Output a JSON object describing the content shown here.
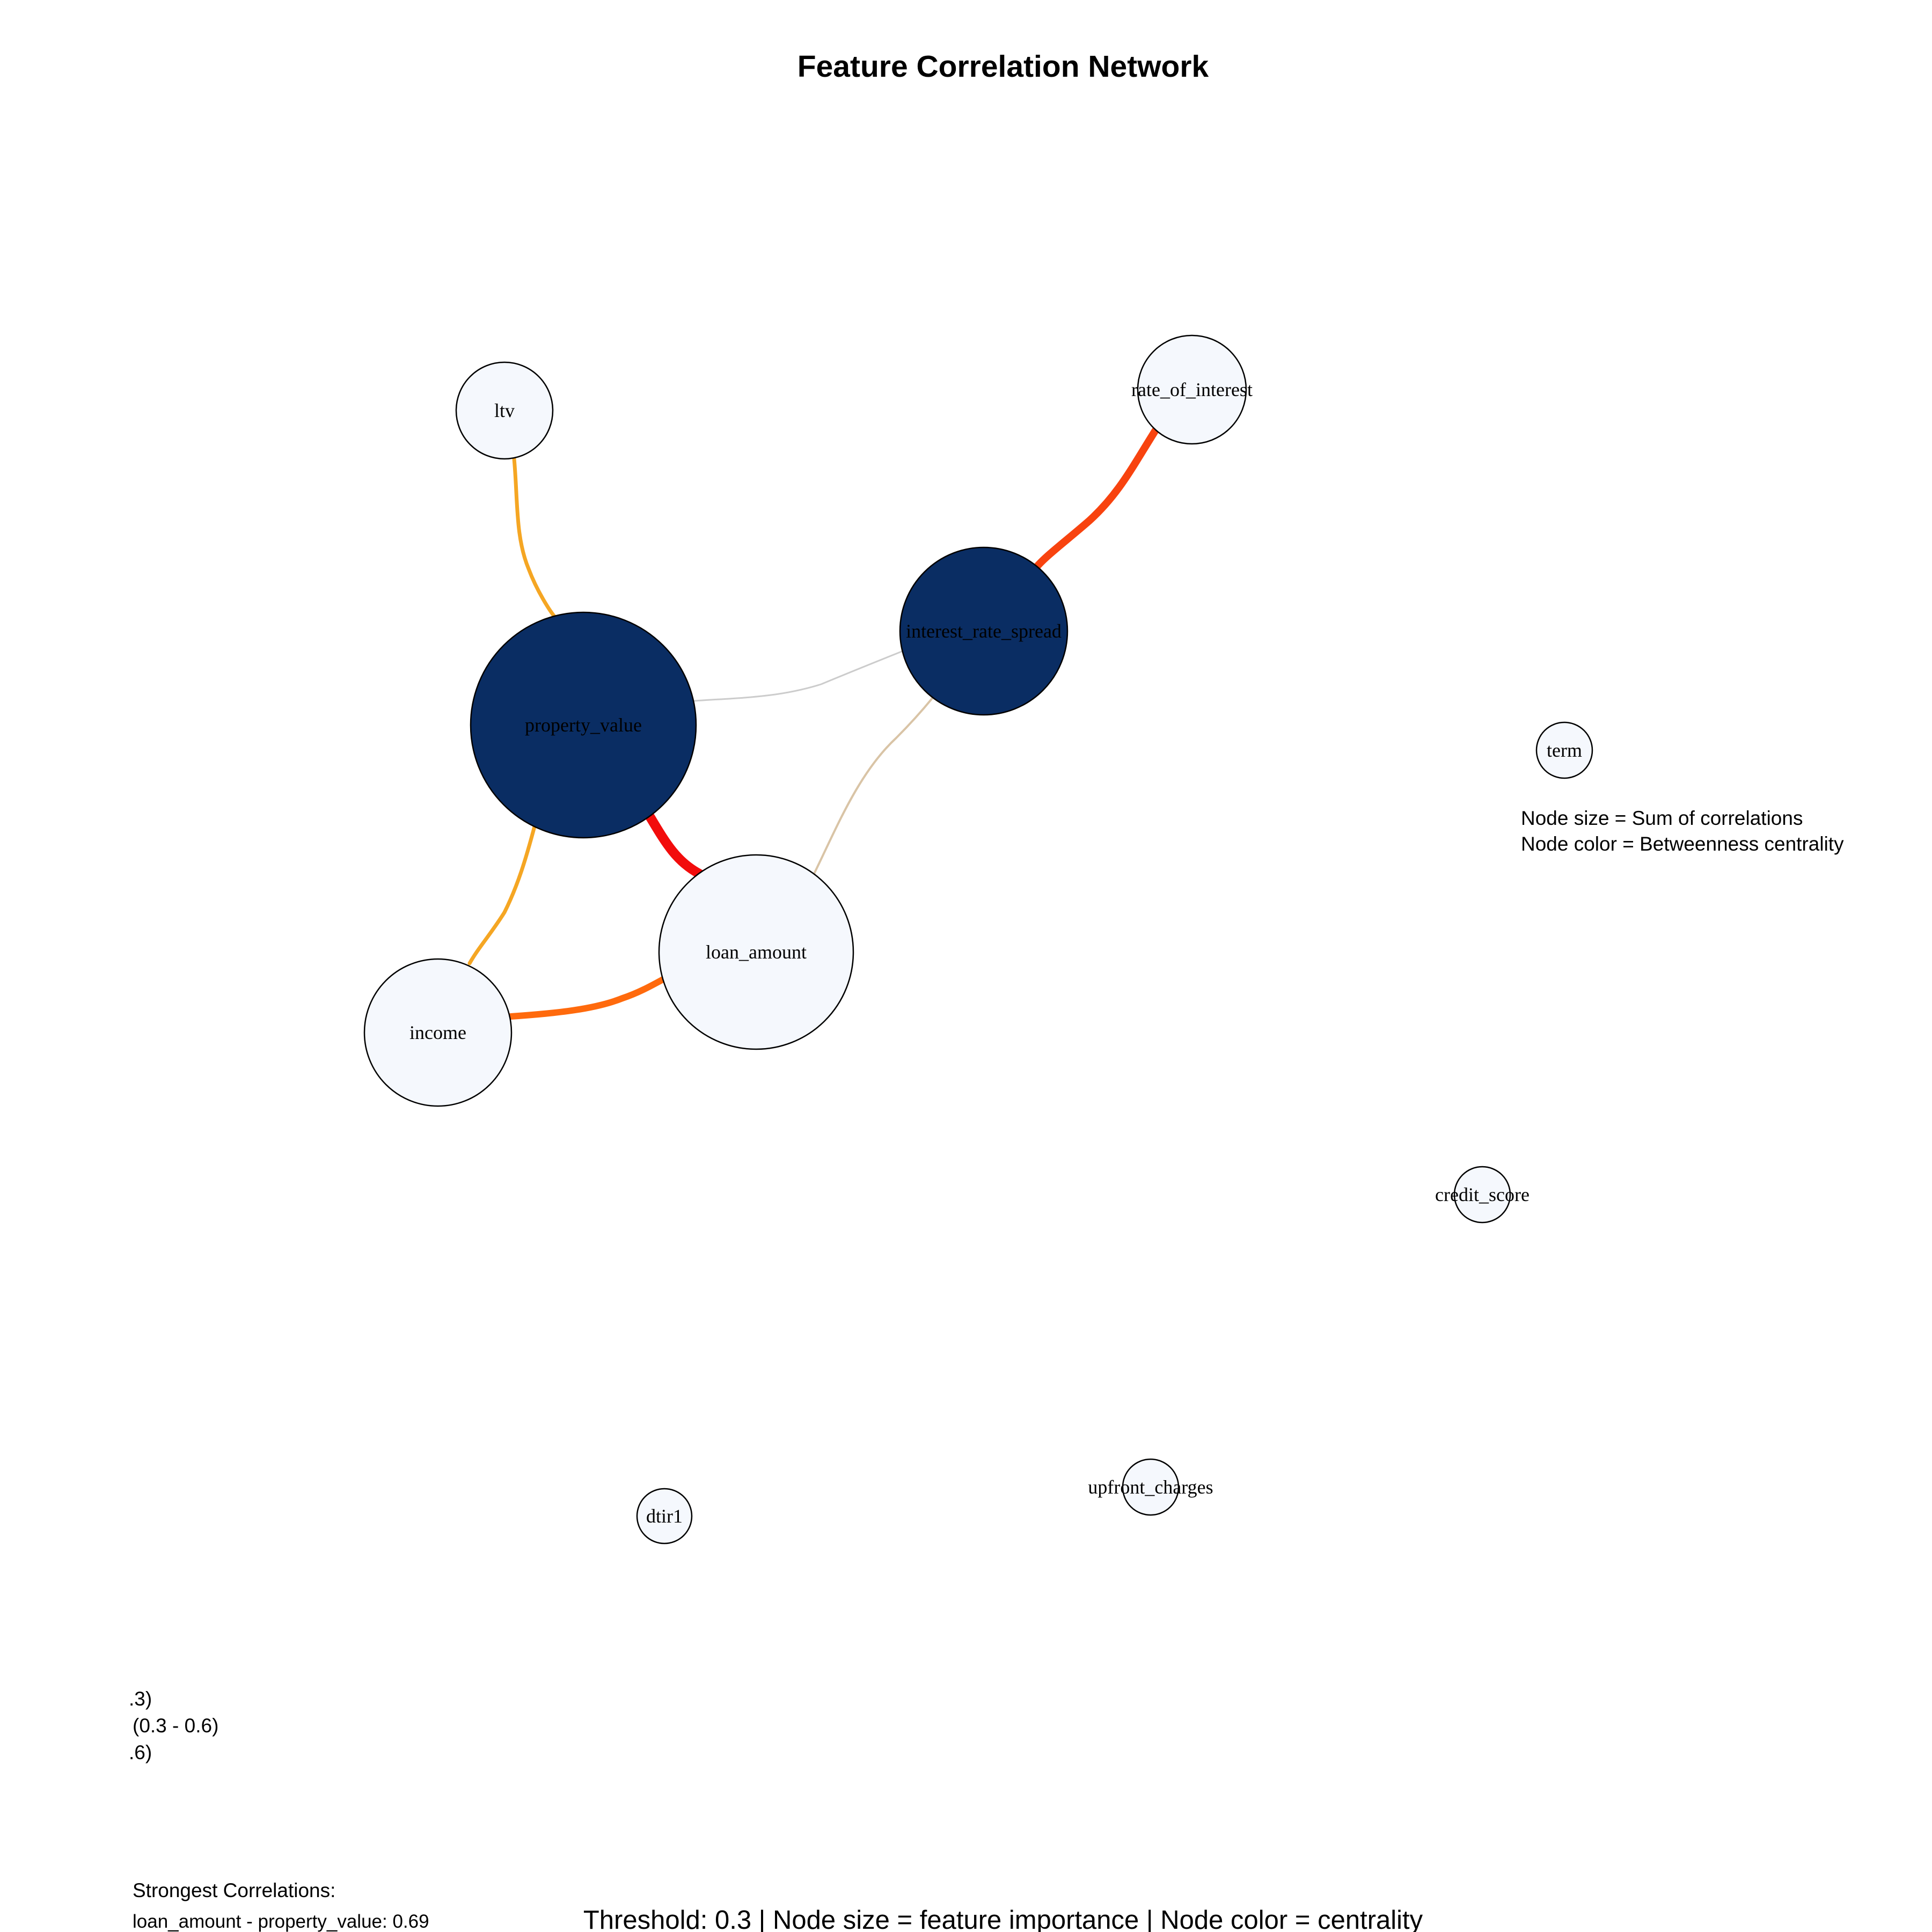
{
  "title": "Feature Correlation Network",
  "nodes": [
    {
      "id": "ltv",
      "label": "ltv",
      "fill": "#f5f8fd"
    },
    {
      "id": "rate_of_interest",
      "label": "rate_of_interest",
      "fill": "#f5f8fd"
    },
    {
      "id": "interest_rate_spread",
      "label": "interest_rate_spread",
      "fill": "#0a2d63"
    },
    {
      "id": "property_value",
      "label": "property_value",
      "fill": "#0a2d63"
    },
    {
      "id": "term",
      "label": "term",
      "fill": "#f5f8fd"
    },
    {
      "id": "loan_amount",
      "label": "loan_amount",
      "fill": "#f5f8fd"
    },
    {
      "id": "income",
      "label": "income",
      "fill": "#f5f8fd"
    },
    {
      "id": "credit_score",
      "label": "credit_score",
      "fill": "#f5f8fd"
    },
    {
      "id": "dtir1",
      "label": "dtir1",
      "fill": "#f5f8fd"
    },
    {
      "id": "upfront_charges",
      "label": "upfront_charges",
      "fill": "#f5f8fd"
    }
  ],
  "edges": [
    {
      "source": "ltv",
      "target": "property_value",
      "color": "#f5a623"
    },
    {
      "source": "rate_of_interest",
      "target": "interest_rate_spread",
      "color": "#f8430f"
    },
    {
      "source": "property_value",
      "target": "interest_rate_spread",
      "color": "#cccccc"
    },
    {
      "source": "loan_amount",
      "target": "interest_rate_spread",
      "color": "#d9c4a6"
    },
    {
      "source": "property_value",
      "target": "loan_amount",
      "color": "#f20c0c"
    },
    {
      "source": "property_value",
      "target": "income",
      "color": "#f5a623"
    },
    {
      "source": "income",
      "target": "loan_amount",
      "color": "#ff6a0d"
    }
  ],
  "node_legend": {
    "line1": "Node size = Sum of correlations",
    "line2": "Node color = Betweenness centrality"
  },
  "edge_legend": {
    "line1": ".3)",
    "line2": "(0.3 - 0.6)",
    "line3": ".6)"
  },
  "strongest": {
    "heading": "Strongest Correlations:",
    "item1": "loan_amount - property_value: 0.69"
  },
  "footer": "Threshold: 0.3 | Node size = feature importance | Node color = centrality"
}
